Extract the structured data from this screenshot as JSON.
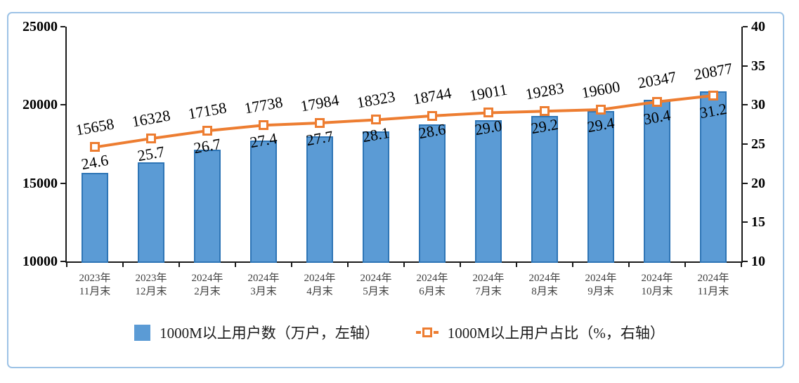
{
  "chart_data": {
    "type": "bar",
    "subtype": "bar-line-combo",
    "title": "",
    "grid": false,
    "legend_position": "bottom",
    "categories": [
      [
        "2023年",
        "11月末"
      ],
      [
        "2023年",
        "12月末"
      ],
      [
        "2024年",
        "2月末"
      ],
      [
        "2024年",
        "3月末"
      ],
      [
        "2024年",
        "4月末"
      ],
      [
        "2024年",
        "5月末"
      ],
      [
        "2024年",
        "6月末"
      ],
      [
        "2024年",
        "7月末"
      ],
      [
        "2024年",
        "8月末"
      ],
      [
        "2024年",
        "9月末"
      ],
      [
        "2024年",
        "10月末"
      ],
      [
        "2024年",
        "11月末"
      ]
    ],
    "series": [
      {
        "name": "1000M以上用户数（万户，左轴）",
        "kind": "bar",
        "axis": "left",
        "values": [
          15658,
          16328,
          17158,
          17738,
          17984,
          18323,
          18744,
          19011,
          19283,
          19600,
          20347,
          20877
        ],
        "labels": [
          "15658",
          "16328",
          "17158",
          "17738",
          "17984",
          "18323",
          "18744",
          "19011",
          "19283",
          "19600",
          "20347",
          "20877"
        ],
        "fill": "#5B9BD5",
        "border": "#2E75B6"
      },
      {
        "name": "1000M以上用户占比（%，右轴）",
        "kind": "line",
        "axis": "right",
        "values": [
          24.6,
          25.7,
          26.7,
          27.4,
          27.7,
          28.1,
          28.6,
          29.0,
          29.2,
          29.4,
          30.4,
          31.2
        ],
        "labels": [
          "24.6",
          "25.7",
          "26.7",
          "27.4",
          "27.7",
          "28.1",
          "28.6",
          "29.0",
          "29.2",
          "29.4",
          "30.4",
          "31.2"
        ],
        "color": "#ED7D31"
      }
    ],
    "left_axis": {
      "min": 10000,
      "max": 25000,
      "tick_labels": [
        "25000",
        "20000",
        "15000",
        "10000"
      ]
    },
    "right_axis": {
      "min": 10,
      "max": 40,
      "tick_labels": [
        "40",
        "35",
        "30",
        "25",
        "20",
        "15",
        "10"
      ]
    }
  },
  "colors": {
    "frame_border": "#9DC3E6",
    "axis": "#1a1a1a",
    "bar_fill": "#5B9BD5",
    "bar_border": "#2E75B6",
    "line": "#ED7D31",
    "x_label_text": "#404040"
  }
}
